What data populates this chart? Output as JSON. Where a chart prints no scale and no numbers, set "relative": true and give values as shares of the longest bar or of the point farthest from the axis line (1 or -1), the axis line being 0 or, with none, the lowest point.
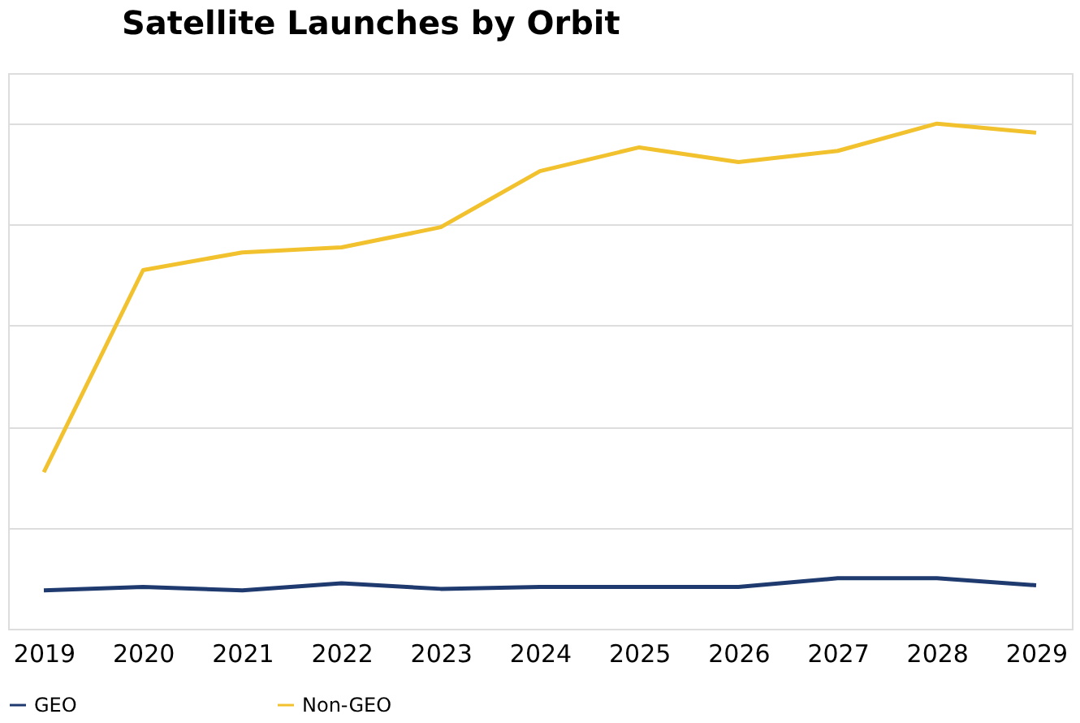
{
  "chart_data": {
    "type": "line",
    "title": "Satellite Launches by Orbit",
    "relative": true,
    "grid": "y",
    "legend": "bottom",
    "marker": "none",
    "line_style": "solid",
    "categories": [
      "2019",
      "2020",
      "2021",
      "2022",
      "2023",
      "2024",
      "2025",
      "2026",
      "2027",
      "2028",
      "2029"
    ],
    "series": [
      {
        "name": "GEO",
        "color": "#1f3a6e",
        "values": [
          0.076,
          0.083,
          0.076,
          0.09,
          0.079,
          0.083,
          0.083,
          0.083,
          0.1,
          0.1,
          0.086
        ]
      },
      {
        "name": "Non-GEO",
        "color": "#f2c12e",
        "values": [
          0.31,
          0.71,
          0.745,
          0.755,
          0.795,
          0.906,
          0.953,
          0.924,
          0.946,
          1,
          0.982
        ]
      }
    ]
  }
}
